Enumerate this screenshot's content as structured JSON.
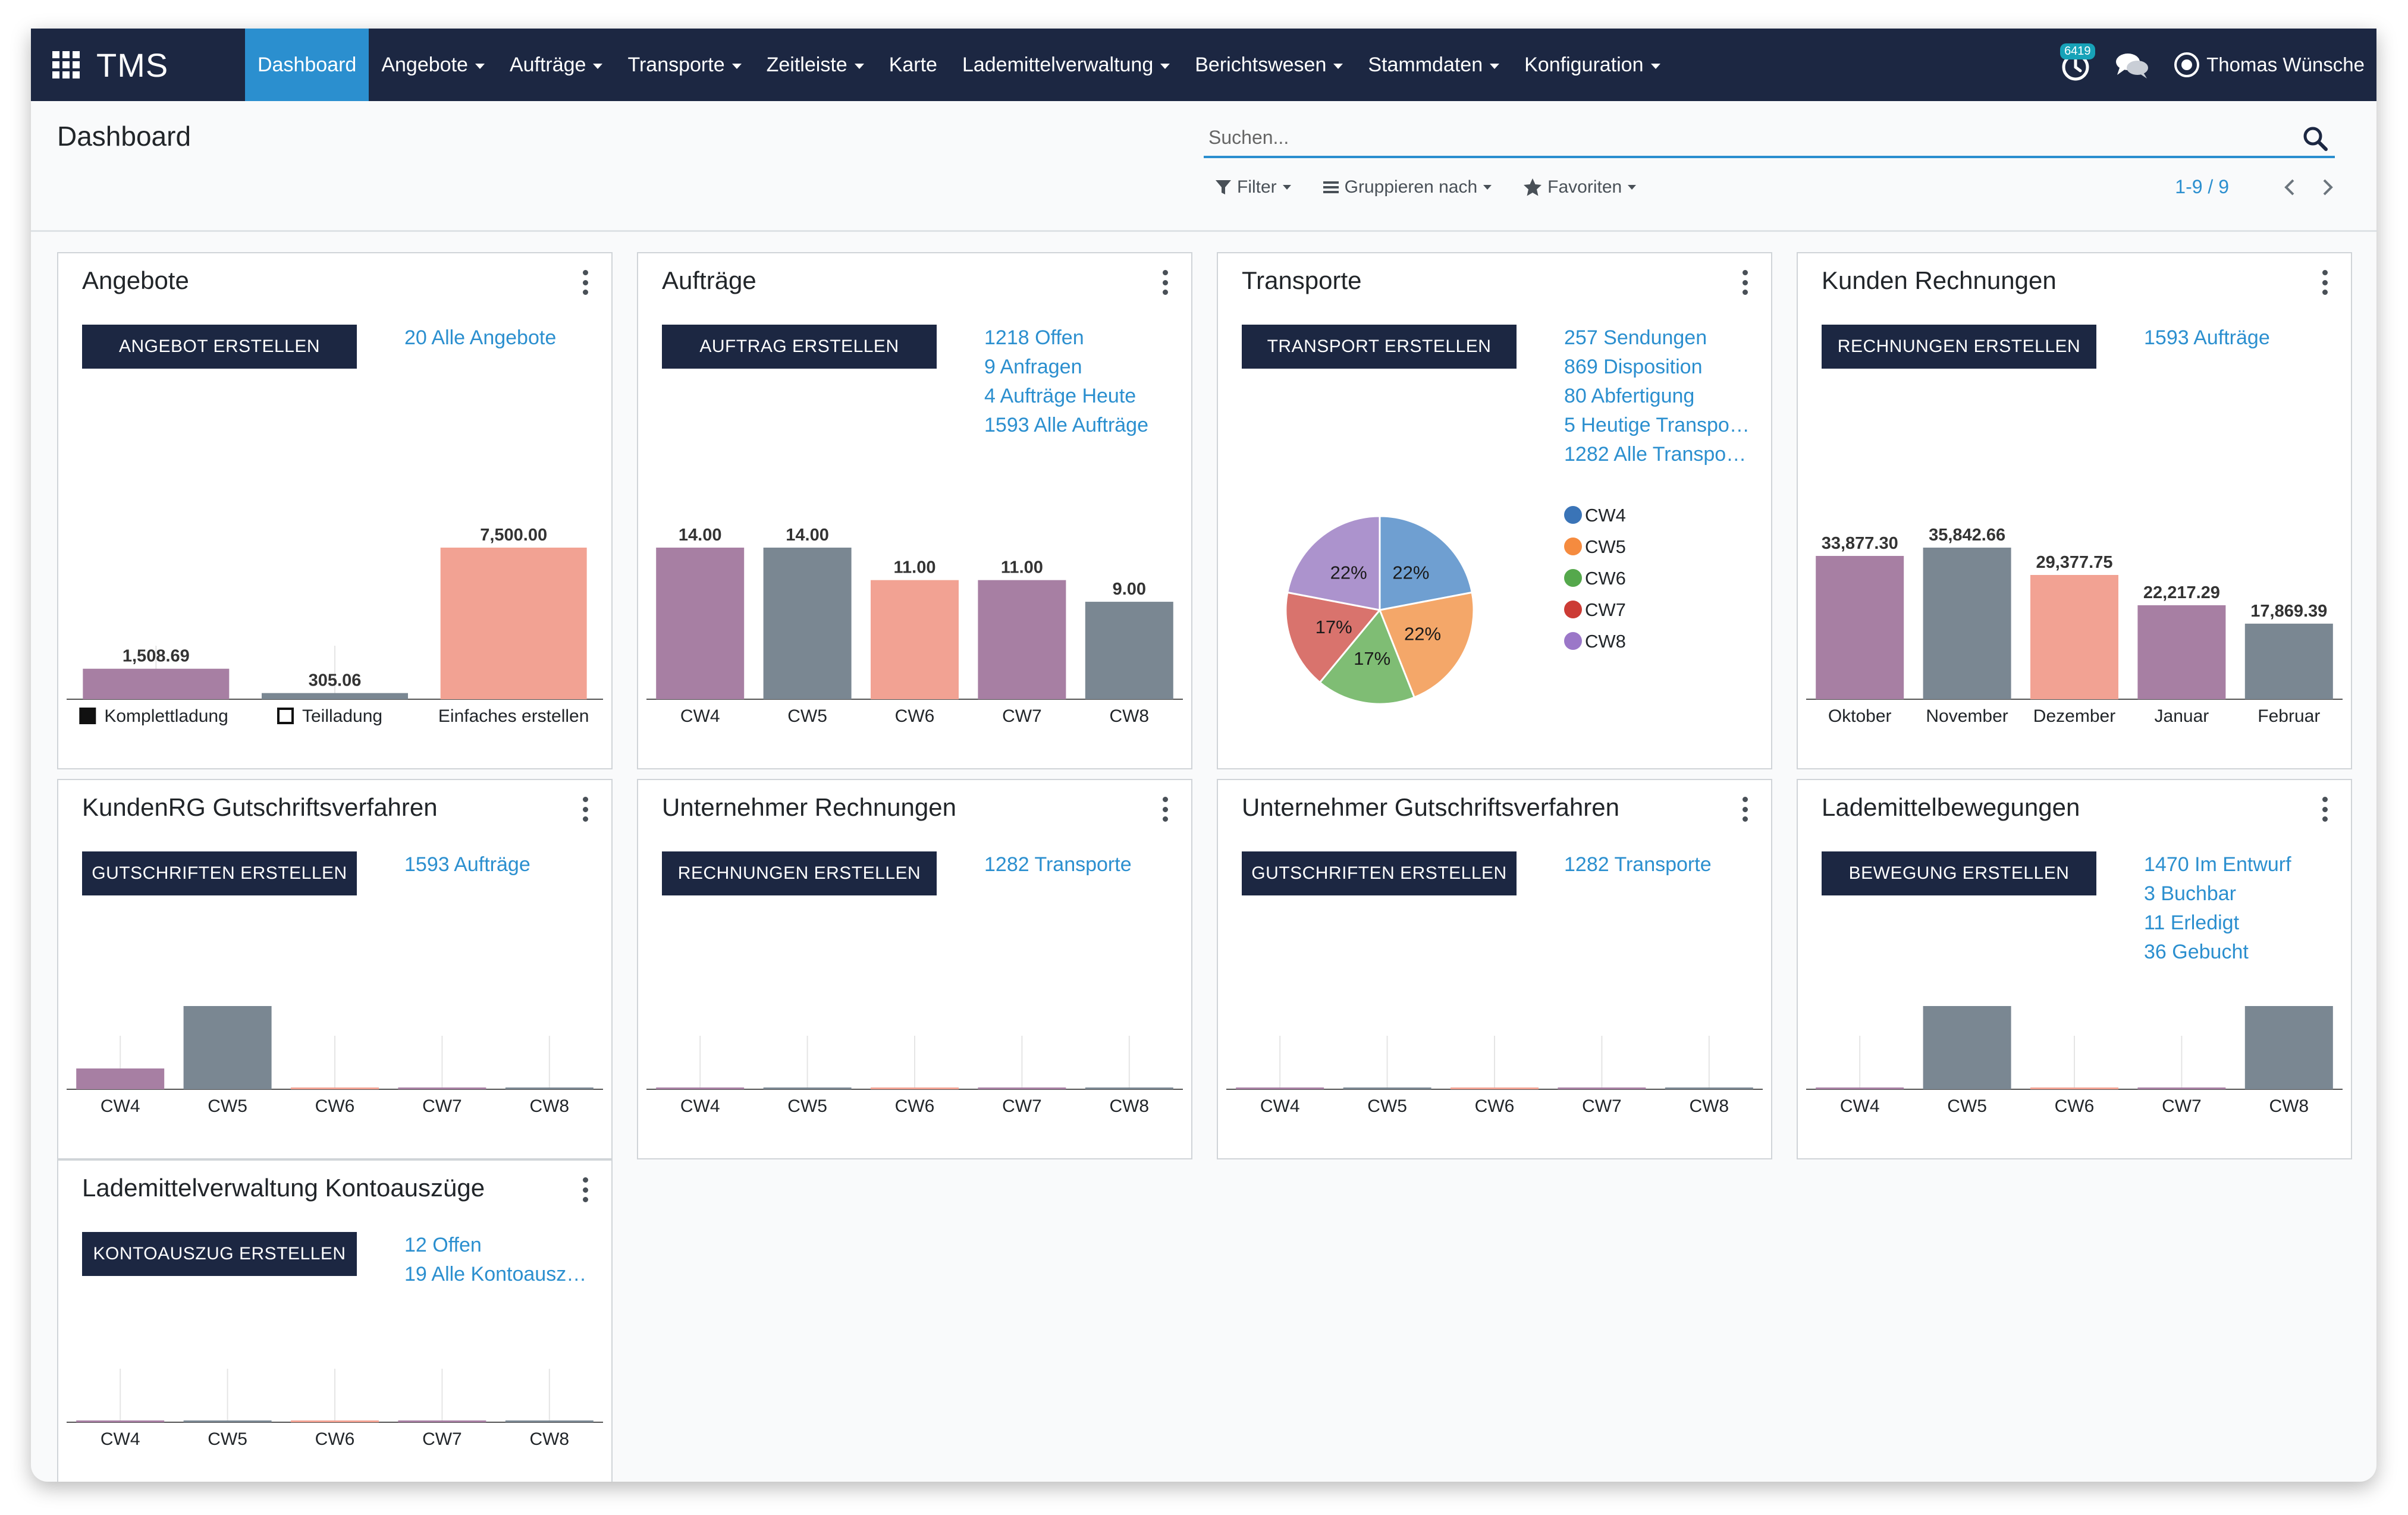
{
  "navbar": {
    "brand": "TMS",
    "menu": [
      {
        "label": "Dashboard",
        "active": true,
        "dropdown": false
      },
      {
        "label": "Angebote",
        "active": false,
        "dropdown": true
      },
      {
        "label": "Aufträge",
        "active": false,
        "dropdown": true
      },
      {
        "label": "Transporte",
        "active": false,
        "dropdown": true
      },
      {
        "label": "Zeitleiste",
        "active": false,
        "dropdown": true
      },
      {
        "label": "Karte",
        "active": false,
        "dropdown": false
      },
      {
        "label": "Lademittelverwaltung",
        "active": false,
        "dropdown": true
      },
      {
        "label": "Berichtswesen",
        "active": false,
        "dropdown": true
      },
      {
        "label": "Stammdaten",
        "active": false,
        "dropdown": true
      },
      {
        "label": "Konfiguration",
        "active": false,
        "dropdown": true
      }
    ],
    "activity_badge": "6419",
    "user_name": "Thomas Wünsche"
  },
  "control_panel": {
    "title": "Dashboard",
    "search_placeholder": "Suchen...",
    "filter_label": "Filter",
    "group_label": "Gruppieren nach",
    "favorites_label": "Favoriten",
    "pager": "1-9 / 9"
  },
  "colors": {
    "navbar": "#1c2742",
    "accent": "#2b8fcf",
    "bar_purple": "#a77fa3",
    "bar_gray": "#7a8792",
    "bar_salmon": "#f2a293"
  },
  "cards": [
    {
      "title": "Angebote",
      "button": "ANGEBOT ERSTELLEN",
      "links": [
        "20 Alle Angebote"
      ],
      "chart_data": {
        "type": "bar",
        "categories": [
          "Komplettladung",
          "Teilladung",
          "Einfaches erstellen"
        ],
        "values": [
          1508.69,
          305.06,
          7500.0
        ],
        "labels": [
          "1,508.69",
          "305.06",
          "7,500.00"
        ],
        "colors": [
          "#a77fa3",
          "#7a8792",
          "#f2a293"
        ],
        "legend_markers": [
          "filled",
          "empty",
          "none"
        ]
      }
    },
    {
      "title": "Aufträge",
      "button": "AUFTRAG ERSTELLEN",
      "links": [
        "1218 Offen",
        "9 Anfragen",
        "4 Aufträge Heute",
        "1593 Alle Aufträge"
      ],
      "chart_data": {
        "type": "bar",
        "categories": [
          "CW4",
          "CW5",
          "CW6",
          "CW7",
          "CW8"
        ],
        "values": [
          14.0,
          14.0,
          11.0,
          11.0,
          9.0
        ],
        "labels": [
          "14.00",
          "14.00",
          "11.00",
          "11.00",
          "9.00"
        ],
        "colors": [
          "#a77fa3",
          "#7a8792",
          "#f2a293",
          "#a77fa3",
          "#7a8792"
        ]
      }
    },
    {
      "title": "Transporte",
      "button": "TRANSPORT ERSTELLEN",
      "links": [
        "257 Sendungen",
        "869 Disposition",
        "80 Abfertigung",
        "5 Heutige Transpo…",
        "1282 Alle Transpo…"
      ],
      "chart_data": {
        "type": "pie",
        "categories": [
          "CW4",
          "CW5",
          "CW6",
          "CW7",
          "CW8"
        ],
        "values": [
          22,
          22,
          17,
          17,
          22
        ],
        "labels": [
          "22%",
          "22%",
          "17%",
          "17%",
          "22%"
        ],
        "colors": [
          "#6f9fd1",
          "#f4a769",
          "#7fbd74",
          "#d9736d",
          "#ac93cd"
        ],
        "legend_colors": [
          "#3a74b7",
          "#f58b3f",
          "#55a84c",
          "#cc3b35",
          "#9b77c8"
        ]
      }
    },
    {
      "title": "Kunden Rechnungen",
      "button": "RECHNUNGEN ERSTELLEN",
      "links": [
        "1593 Aufträge"
      ],
      "chart_data": {
        "type": "bar",
        "categories": [
          "Oktober",
          "November",
          "Dezember",
          "Januar",
          "Februar"
        ],
        "values": [
          33877.3,
          35842.66,
          29377.75,
          22217.29,
          17869.39
        ],
        "labels": [
          "33,877.30",
          "35,842.66",
          "29,377.75",
          "22,217.29",
          "17,869.39"
        ],
        "colors": [
          "#a77fa3",
          "#7a8792",
          "#f2a293",
          "#a77fa3",
          "#7a8792"
        ]
      }
    },
    {
      "title": "KundenRG Gutschriftsverfahren",
      "button": "GUTSCHRIFTEN ERSTELLEN",
      "links": [
        "1593 Aufträge"
      ],
      "chart_data": {
        "type": "bar",
        "categories": [
          "CW4",
          "CW5",
          "CW6",
          "CW7",
          "CW8"
        ],
        "values": [
          1,
          4,
          0,
          0,
          0
        ],
        "colors": [
          "#a77fa3",
          "#7a8792",
          "#f2a293",
          "#a77fa3",
          "#7a8792"
        ]
      }
    },
    {
      "title": "Unternehmer Rechnungen",
      "button": "RECHNUNGEN ERSTELLEN",
      "links": [
        "1282 Transporte"
      ],
      "chart_data": {
        "type": "bar",
        "categories": [
          "CW4",
          "CW5",
          "CW6",
          "CW7",
          "CW8"
        ],
        "values": [
          0,
          0,
          0,
          0,
          0
        ],
        "colors": [
          "#a77fa3",
          "#7a8792",
          "#f2a293",
          "#a77fa3",
          "#7a8792"
        ]
      }
    },
    {
      "title": "Unternehmer Gutschriftsverfahren",
      "button": "GUTSCHRIFTEN ERSTELLEN",
      "links": [
        "1282 Transporte"
      ],
      "chart_data": {
        "type": "bar",
        "categories": [
          "CW4",
          "CW5",
          "CW6",
          "CW7",
          "CW8"
        ],
        "values": [
          0,
          0,
          0,
          0,
          0
        ],
        "colors": [
          "#a77fa3",
          "#7a8792",
          "#f2a293",
          "#a77fa3",
          "#7a8792"
        ]
      }
    },
    {
      "title": "Lademittelbewegungen",
      "button": "BEWEGUNG ERSTELLEN",
      "links": [
        "1470 Im Entwurf",
        "3 Buchbar",
        "11 Erledigt",
        "36 Gebucht"
      ],
      "chart_data": {
        "type": "bar",
        "categories": [
          "CW4",
          "CW5",
          "CW6",
          "CW7",
          "CW8"
        ],
        "values": [
          0,
          1,
          0,
          0,
          1
        ],
        "colors": [
          "#a77fa3",
          "#7a8792",
          "#f2a293",
          "#a77fa3",
          "#7a8792"
        ]
      }
    },
    {
      "title": "Lademittelverwaltung Kontoauszüge",
      "button": "KONTOAUSZUG ERSTELLEN",
      "links": [
        "12 Offen",
        "19 Alle Kontoausz…"
      ],
      "chart_data": {
        "type": "bar",
        "categories": [
          "CW4",
          "CW5",
          "CW6",
          "CW7",
          "CW8"
        ],
        "values": [
          0,
          0,
          0,
          0,
          0
        ],
        "colors": [
          "#a77fa3",
          "#7a8792",
          "#f2a293",
          "#a77fa3",
          "#7a8792"
        ]
      }
    }
  ]
}
